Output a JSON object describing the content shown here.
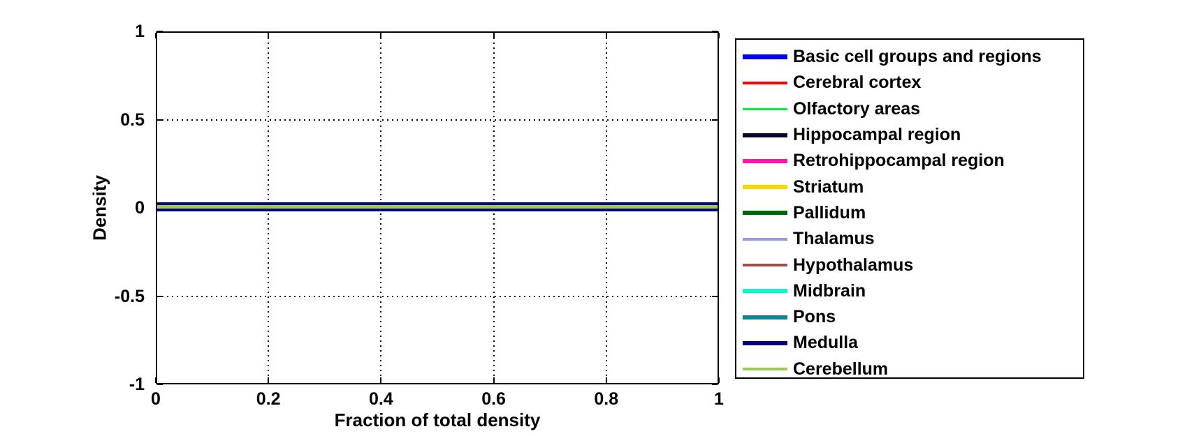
{
  "figure": {
    "background": "#ffffff"
  },
  "axes": {
    "xlabel": "Fraction of total density",
    "ylabel": "Density",
    "x_tick_labels": [
      "0",
      "0.2",
      "0.4",
      "0.6",
      "0.8",
      "1"
    ],
    "y_tick_labels": [
      "1",
      "0.5",
      "0",
      "-0.5",
      "-1"
    ]
  },
  "legend": {
    "items": [
      {
        "label": "Basic cell groups and regions",
        "color": "#0000ff",
        "thickness": 7
      },
      {
        "label": "Cerebral cortex",
        "color": "#ff0000",
        "thickness": 4
      },
      {
        "label": "Olfactory areas",
        "color": "#00f23c",
        "thickness": 3
      },
      {
        "label": "Hippocampal region",
        "color": "#05052d",
        "thickness": 6
      },
      {
        "label": "Retrohippocampal region",
        "color": "#ff14ac",
        "thickness": 6
      },
      {
        "label": "Striatum",
        "color": "#ffd500",
        "thickness": 6
      },
      {
        "label": "Pallidum",
        "color": "#006400",
        "thickness": 6
      },
      {
        "label": "Thalamus",
        "color": "#9696fa",
        "thickness": 4
      },
      {
        "label": "Hypothalamus",
        "color": "#9e5148",
        "thickness": 4
      },
      {
        "label": "Midbrain",
        "color": "#00ffc8",
        "thickness": 6
      },
      {
        "label": "Pons",
        "color": "#12828f",
        "thickness": 6
      },
      {
        "label": "Medulla",
        "color": "#00007d",
        "thickness": 6
      },
      {
        "label": "Cerebellum",
        "color": "#99cc55",
        "thickness": 4
      }
    ]
  },
  "zero_band": {
    "layers": [
      {
        "color": "#00007d",
        "height": 4
      },
      {
        "color": "#99cc55",
        "height": 5
      },
      {
        "color": "#00007d",
        "height": 4
      }
    ]
  },
  "chart_data": {
    "type": "line",
    "title": "",
    "xlabel": "Fraction of total density",
    "ylabel": "Density",
    "xlim": [
      0,
      1
    ],
    "ylim": [
      -1,
      1
    ],
    "x_ticks": [
      0,
      0.2,
      0.4,
      0.6,
      0.8,
      1
    ],
    "y_ticks": [
      1,
      0.5,
      0,
      -0.5,
      -1
    ],
    "grid": true,
    "grid_style": "dotted",
    "legend_position": "outside-right",
    "x": [
      0,
      1
    ],
    "series": [
      {
        "name": "Basic cell groups and regions",
        "color": "#0000ff",
        "values": [
          0,
          0
        ]
      },
      {
        "name": "Cerebral cortex",
        "color": "#ff0000",
        "values": [
          0,
          0
        ]
      },
      {
        "name": "Olfactory areas",
        "color": "#00f23c",
        "values": [
          0,
          0
        ]
      },
      {
        "name": "Hippocampal region",
        "color": "#05052d",
        "values": [
          0,
          0
        ]
      },
      {
        "name": "Retrohippocampal region",
        "color": "#ff14ac",
        "values": [
          0,
          0
        ]
      },
      {
        "name": "Striatum",
        "color": "#ffd500",
        "values": [
          0,
          0
        ]
      },
      {
        "name": "Pallidum",
        "color": "#006400",
        "values": [
          0,
          0
        ]
      },
      {
        "name": "Thalamus",
        "color": "#9696fa",
        "values": [
          0,
          0
        ]
      },
      {
        "name": "Hypothalamus",
        "color": "#9e5148",
        "values": [
          0,
          0
        ]
      },
      {
        "name": "Midbrain",
        "color": "#00ffc8",
        "values": [
          0,
          0
        ]
      },
      {
        "name": "Pons",
        "color": "#12828f",
        "values": [
          0,
          0
        ]
      },
      {
        "name": "Medulla",
        "color": "#00007d",
        "values": [
          0,
          0
        ]
      },
      {
        "name": "Cerebellum",
        "color": "#99cc55",
        "values": [
          0,
          0
        ]
      }
    ],
    "note": "All 13 series are flat at density ~0 across x in [0,1]; the visible band at y=0 is the Medulla (navy) line with the Cerebellum (light green) line drawn on top."
  }
}
